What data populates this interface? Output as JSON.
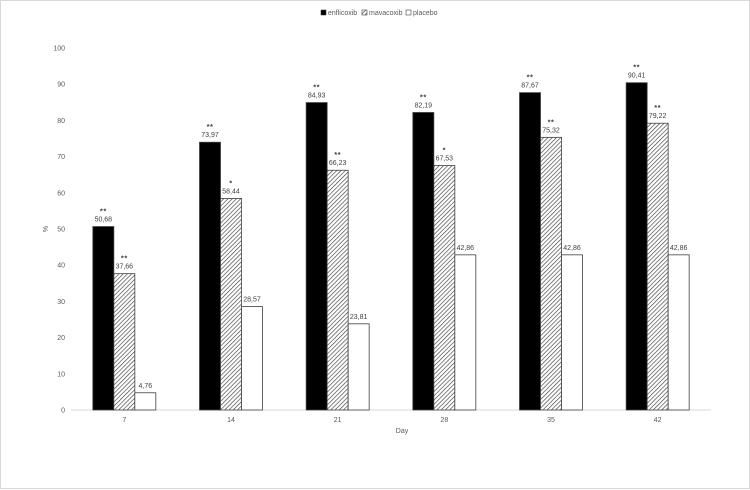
{
  "chart_data": {
    "type": "bar",
    "title": "",
    "xlabel": "Day",
    "ylabel": "%",
    "ylim": [
      0,
      100
    ],
    "yticks": [
      "0",
      "10",
      "20",
      "30",
      "40",
      "50",
      "60",
      "70",
      "80",
      "90",
      "100"
    ],
    "categories": [
      "7",
      "14",
      "21",
      "28",
      "35",
      "42"
    ],
    "legend_position": "top-center",
    "grid": false,
    "series": [
      {
        "name": "enflicoxib",
        "fill": "solid-black",
        "color": "#000000",
        "values": [
          50.68,
          73.97,
          84.93,
          82.19,
          87.67,
          90.41
        ],
        "labels": [
          "50,68",
          "73,97",
          "84,93",
          "82,19",
          "87,67",
          "90,41"
        ],
        "significance": [
          "**",
          "**",
          "**",
          "**",
          "**",
          "**"
        ]
      },
      {
        "name": "mavacoxib",
        "fill": "diagonal-hatch",
        "color": "#404040",
        "values": [
          37.66,
          58.44,
          66.23,
          67.53,
          75.32,
          79.22
        ],
        "labels": [
          "37,66",
          "58,44",
          "66,23",
          "67,53",
          "75,32",
          "79,22"
        ],
        "significance": [
          "**",
          "*",
          "**",
          "*",
          "**",
          "**"
        ]
      },
      {
        "name": "placebo",
        "fill": "white",
        "color": "#ffffff",
        "values": [
          4.76,
          28.57,
          23.81,
          42.86,
          42.86,
          42.86
        ],
        "labels": [
          "4,76",
          "28,57",
          "23,81",
          "42,86",
          "42,86",
          "42,86"
        ],
        "significance": [
          "",
          "",
          "",
          "",
          "",
          ""
        ]
      }
    ]
  }
}
